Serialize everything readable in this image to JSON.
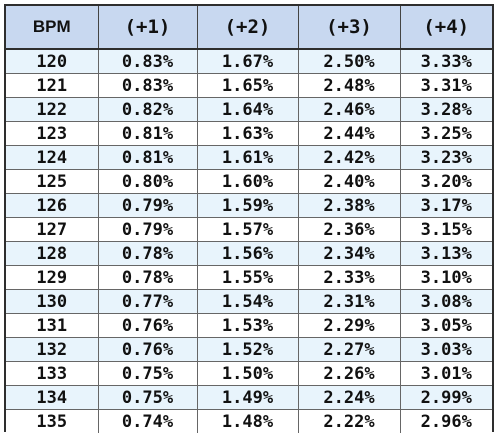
{
  "table": {
    "headers": [
      "BPM",
      "(+1)",
      "(+2)",
      "(+3)",
      "(+4)"
    ],
    "rows": [
      [
        "120",
        "0.83%",
        "1.67%",
        "2.50%",
        "3.33%"
      ],
      [
        "121",
        "0.83%",
        "1.65%",
        "2.48%",
        "3.31%"
      ],
      [
        "122",
        "0.82%",
        "1.64%",
        "2.46%",
        "3.28%"
      ],
      [
        "123",
        "0.81%",
        "1.63%",
        "2.44%",
        "3.25%"
      ],
      [
        "124",
        "0.81%",
        "1.61%",
        "2.42%",
        "3.23%"
      ],
      [
        "125",
        "0.80%",
        "1.60%",
        "2.40%",
        "3.20%"
      ],
      [
        "126",
        "0.79%",
        "1.59%",
        "2.38%",
        "3.17%"
      ],
      [
        "127",
        "0.79%",
        "1.57%",
        "2.36%",
        "3.15%"
      ],
      [
        "128",
        "0.78%",
        "1.56%",
        "2.34%",
        "3.13%"
      ],
      [
        "129",
        "0.78%",
        "1.55%",
        "2.33%",
        "3.10%"
      ],
      [
        "130",
        "0.77%",
        "1.54%",
        "2.31%",
        "3.08%"
      ],
      [
        "131",
        "0.76%",
        "1.53%",
        "2.29%",
        "3.05%"
      ],
      [
        "132",
        "0.76%",
        "1.52%",
        "2.27%",
        "3.03%"
      ],
      [
        "133",
        "0.75%",
        "1.50%",
        "2.26%",
        "3.01%"
      ],
      [
        "134",
        "0.75%",
        "1.49%",
        "2.24%",
        "2.99%"
      ],
      [
        "135",
        "0.74%",
        "1.48%",
        "2.22%",
        "2.96%"
      ]
    ]
  },
  "colors": {
    "header_bg": "#c8d8f0",
    "row_alt_bg": "#e8f4fc",
    "row_bg": "#ffffff",
    "border": "#2e2e2e"
  }
}
